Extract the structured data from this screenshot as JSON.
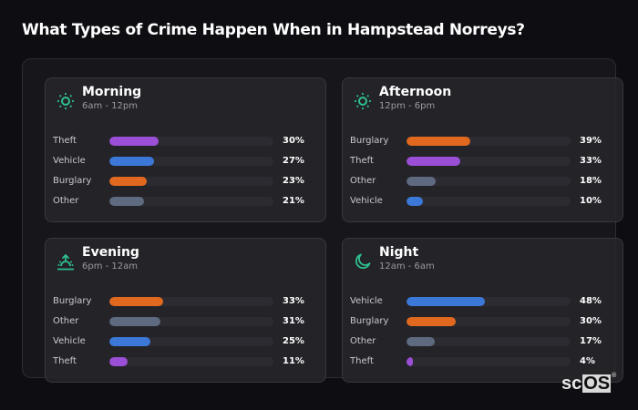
{
  "title": "What Types of Crime Happen When in Hampstead Norreys?",
  "colors": {
    "Theft": "#9b4fd6",
    "Vehicle": "#3b78d8",
    "Burglary": "#e0691f",
    "Other": "#5e6a80",
    "icon": "#2fbf8f"
  },
  "cards": [
    {
      "name": "Morning",
      "range": "6am - 12pm",
      "icon": "sun-icon",
      "rows": [
        {
          "label": "Theft",
          "value": 30,
          "pct": "30%"
        },
        {
          "label": "Vehicle",
          "value": 27,
          "pct": "27%"
        },
        {
          "label": "Burglary",
          "value": 23,
          "pct": "23%"
        },
        {
          "label": "Other",
          "value": 21,
          "pct": "21%"
        }
      ]
    },
    {
      "name": "Afternoon",
      "range": "12pm - 6pm",
      "icon": "sun-icon",
      "rows": [
        {
          "label": "Burglary",
          "value": 39,
          "pct": "39%"
        },
        {
          "label": "Theft",
          "value": 33,
          "pct": "33%"
        },
        {
          "label": "Other",
          "value": 18,
          "pct": "18%"
        },
        {
          "label": "Vehicle",
          "value": 10,
          "pct": "10%"
        }
      ]
    },
    {
      "name": "Evening",
      "range": "6pm - 12am",
      "icon": "sunset-icon",
      "rows": [
        {
          "label": "Burglary",
          "value": 33,
          "pct": "33%"
        },
        {
          "label": "Other",
          "value": 31,
          "pct": "31%"
        },
        {
          "label": "Vehicle",
          "value": 25,
          "pct": "25%"
        },
        {
          "label": "Theft",
          "value": 11,
          "pct": "11%"
        }
      ]
    },
    {
      "name": "Night",
      "range": "12am - 6am",
      "icon": "moon-icon",
      "rows": [
        {
          "label": "Vehicle",
          "value": 48,
          "pct": "48%"
        },
        {
          "label": "Burglary",
          "value": 30,
          "pct": "30%"
        },
        {
          "label": "Other",
          "value": 17,
          "pct": "17%"
        },
        {
          "label": "Theft",
          "value": 4,
          "pct": "4%"
        }
      ]
    }
  ],
  "logo": {
    "sc": "sc",
    "os": "OS",
    "reg": "®"
  },
  "chart_data": [
    {
      "type": "bar",
      "title": "Morning",
      "subtitle": "6am - 12pm",
      "orientation": "horizontal",
      "categories": [
        "Theft",
        "Vehicle",
        "Burglary",
        "Other"
      ],
      "values": [
        30,
        27,
        23,
        21
      ],
      "xlim": [
        0,
        100
      ],
      "unit": "%"
    },
    {
      "type": "bar",
      "title": "Afternoon",
      "subtitle": "12pm - 6pm",
      "orientation": "horizontal",
      "categories": [
        "Burglary",
        "Theft",
        "Other",
        "Vehicle"
      ],
      "values": [
        39,
        33,
        18,
        10
      ],
      "xlim": [
        0,
        100
      ],
      "unit": "%"
    },
    {
      "type": "bar",
      "title": "Evening",
      "subtitle": "6pm - 12am",
      "orientation": "horizontal",
      "categories": [
        "Burglary",
        "Other",
        "Vehicle",
        "Theft"
      ],
      "values": [
        33,
        31,
        25,
        11
      ],
      "xlim": [
        0,
        100
      ],
      "unit": "%"
    },
    {
      "type": "bar",
      "title": "Night",
      "subtitle": "12am - 6am",
      "orientation": "horizontal",
      "categories": [
        "Vehicle",
        "Burglary",
        "Other",
        "Theft"
      ],
      "values": [
        48,
        30,
        17,
        4
      ],
      "xlim": [
        0,
        100
      ],
      "unit": "%"
    }
  ]
}
